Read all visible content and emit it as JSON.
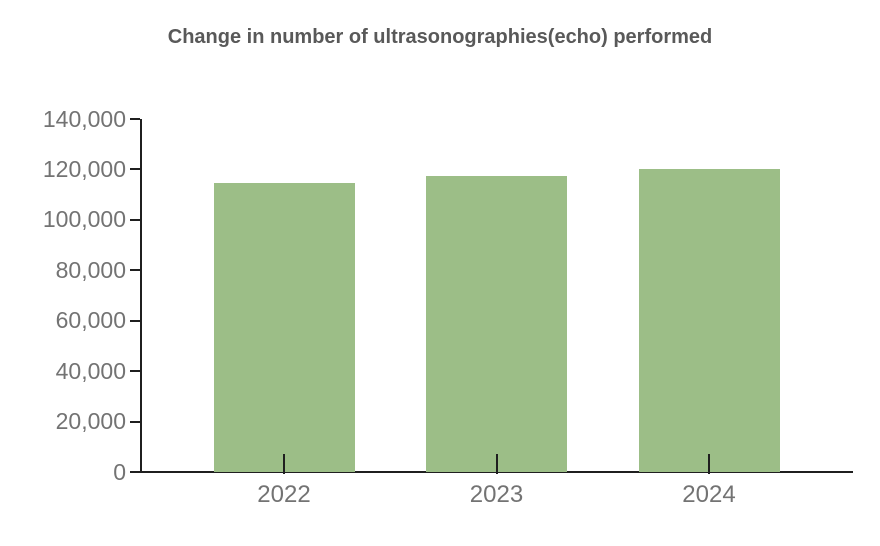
{
  "title": "Change in number of ultrasonographies(echo) performed",
  "chart_data": {
    "type": "bar",
    "title": "Change in number of ultrasonographies(echo) performed",
    "categories": [
      "2022",
      "2023",
      "2024"
    ],
    "values": [
      114500,
      117300,
      120000
    ],
    "xlabel": "",
    "ylabel": "",
    "ylim": [
      0,
      140000
    ],
    "ytick_step": 20000,
    "ytick_labels": [
      "0",
      "20,000",
      "40,000",
      "60,000",
      "80,000",
      "100,000",
      "120,000",
      "140,000"
    ],
    "grid": false,
    "legend": false,
    "bar_color": "#9CBE87",
    "axis_color": "#1f1f1f",
    "tick_label_color": "#737373",
    "title_color": "#595959",
    "background_color": "#FFFFFF"
  }
}
